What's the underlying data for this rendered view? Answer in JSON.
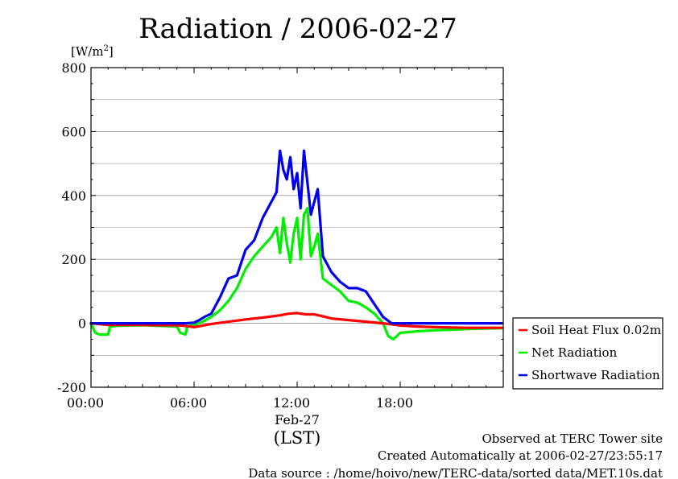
{
  "chart_data": {
    "type": "line",
    "title": "Radiation / 2006-02-27",
    "ylabel": "[W/m²]",
    "ylabel_parts": {
      "base": "[W/m",
      "sup": "2",
      "end": "]"
    },
    "xlabel": "(LST)",
    "x_date_label": "Feb-27",
    "xlim_hours": [
      0,
      24
    ],
    "ylim": [
      -200,
      800
    ],
    "y_ticks": [
      -200,
      0,
      200,
      400,
      600,
      800
    ],
    "y_tick_labels": [
      "-200",
      "0",
      "200",
      "400",
      "600",
      "800"
    ],
    "x_ticks_hours": [
      0,
      6,
      12,
      18
    ],
    "x_tick_labels": [
      "00:00",
      "06:00",
      "12:00",
      "18:00"
    ],
    "grid": "horizontal",
    "legend_position": "right",
    "series": [
      {
        "name": "Soil Heat Flux 0.02m",
        "color": "#ff0000",
        "x": [
          0,
          1,
          2,
          3,
          4,
          5,
          5.5,
          6,
          6.5,
          7,
          8,
          9,
          10,
          11,
          11.5,
          12,
          12.5,
          13,
          13.5,
          14,
          15,
          16,
          17,
          17.5,
          18,
          19,
          20,
          21,
          22,
          23,
          23.9
        ],
        "values": [
          0,
          -5,
          -5,
          -5,
          -6,
          -6,
          -8,
          -12,
          -7,
          -2,
          5,
          12,
          18,
          25,
          30,
          32,
          28,
          28,
          22,
          15,
          10,
          5,
          0,
          -3,
          -7,
          -10,
          -12,
          -13,
          -14,
          -14,
          -14
        ]
      },
      {
        "name": "Net Radiation",
        "color": "#00ee00",
        "x": [
          0,
          0.25,
          0.5,
          1,
          1.1,
          1.5,
          2,
          3,
          4,
          5,
          5.2,
          5.5,
          5.6,
          6,
          6.5,
          7,
          7.5,
          8,
          8.5,
          9,
          9.5,
          10,
          10.5,
          10.8,
          11,
          11.2,
          11.4,
          11.6,
          11.8,
          12,
          12.2,
          12.4,
          12.6,
          12.8,
          13,
          13.2,
          13.5,
          14,
          14.5,
          15,
          15.5,
          16,
          16.5,
          17,
          17.3,
          17.6,
          18,
          19,
          20,
          21,
          22,
          23,
          23.9
        ],
        "values": [
          0,
          -30,
          -35,
          -35,
          -10,
          -8,
          -7,
          -6,
          -8,
          -10,
          -30,
          -35,
          -10,
          -5,
          5,
          20,
          40,
          70,
          110,
          170,
          210,
          240,
          270,
          300,
          220,
          330,
          250,
          190,
          280,
          330,
          200,
          340,
          360,
          210,
          240,
          280,
          140,
          120,
          100,
          70,
          65,
          50,
          30,
          0,
          -40,
          -50,
          -30,
          -25,
          -22,
          -20,
          -18,
          -16,
          -15
        ]
      },
      {
        "name": "Shortwave Radiation",
        "color": "#0000ee",
        "x": [
          0,
          1,
          2,
          3,
          4,
          5,
          5.5,
          6,
          6.3,
          6.6,
          7,
          7.5,
          8,
          8.5,
          9,
          9.5,
          10,
          10.5,
          10.8,
          11,
          11.2,
          11.4,
          11.6,
          11.8,
          12,
          12.2,
          12.4,
          12.6,
          12.8,
          13,
          13.2,
          13.5,
          14,
          14.5,
          15,
          15.5,
          16,
          16.5,
          17,
          17.5,
          18,
          19,
          20,
          21,
          22,
          23,
          23.9
        ],
        "values": [
          0,
          0,
          0,
          0,
          0,
          0,
          0,
          2,
          10,
          20,
          30,
          80,
          140,
          150,
          230,
          260,
          330,
          380,
          410,
          540,
          480,
          450,
          520,
          420,
          470,
          360,
          540,
          440,
          340,
          380,
          420,
          210,
          160,
          130,
          110,
          110,
          100,
          60,
          20,
          0,
          0,
          0,
          0,
          0,
          0,
          0,
          0
        ]
      }
    ]
  },
  "footer": {
    "line1": "Observed at TERC Tower site",
    "line2": "Created Automatically at 2006-02-27/23:55:17",
    "line3": "Data source : /home/hoivo/new/TERC-data/sorted  data/MET.10s.dat"
  }
}
